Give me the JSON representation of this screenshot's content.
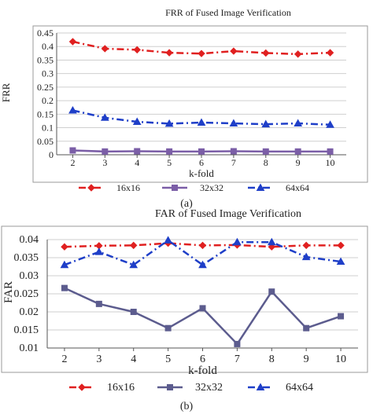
{
  "chart_data": [
    {
      "type": "line",
      "title": "FRR of Fused Image Verification",
      "xlabel": "k-fold",
      "ylabel": "FRR",
      "panel_label": "(a)",
      "x": [
        2,
        3,
        4,
        5,
        6,
        7,
        8,
        9,
        10
      ],
      "xlim": [
        1.5,
        10.5
      ],
      "ylim": [
        0,
        0.45
      ],
      "yticks": [
        "0",
        "0.05",
        "0.1",
        "0.15",
        "0.2",
        "0.25",
        "0.3",
        "0.35",
        "0.4",
        "0.45"
      ],
      "grid": true,
      "legend_position": "bottom",
      "series": [
        {
          "name": "16x16",
          "color": "#e02020",
          "marker": "diamond",
          "dash": "dash-dot",
          "values": [
            0.418,
            0.392,
            0.388,
            0.377,
            0.374,
            0.383,
            0.376,
            0.372,
            0.377
          ]
        },
        {
          "name": "32x32",
          "color": "#7b5ea7",
          "marker": "square",
          "dash": "solid",
          "values": [
            0.016,
            0.012,
            0.013,
            0.012,
            0.012,
            0.013,
            0.012,
            0.012,
            0.012
          ]
        },
        {
          "name": "64x64",
          "color": "#1f3fc8",
          "marker": "triangle",
          "dash": "dash-dot",
          "values": [
            0.164,
            0.137,
            0.122,
            0.115,
            0.119,
            0.116,
            0.113,
            0.116,
            0.111
          ]
        }
      ]
    },
    {
      "type": "line",
      "title": "FAR of Fused Image Verification",
      "xlabel": "k-fold",
      "ylabel": "FAR",
      "panel_label": "(b)",
      "x": [
        2,
        3,
        4,
        5,
        6,
        7,
        8,
        9,
        10
      ],
      "xlim": [
        1.5,
        10.5
      ],
      "ylim": [
        0.01,
        0.04
      ],
      "yticks": [
        "0.01",
        "0.015",
        "0.02",
        "0.025",
        "0.03",
        "0.035",
        "0.04"
      ],
      "grid": true,
      "legend_position": "bottom",
      "series": [
        {
          "name": "16x16",
          "color": "#e02020",
          "marker": "diamond",
          "dash": "dash-dot",
          "values": [
            0.038,
            0.0383,
            0.0384,
            0.039,
            0.0384,
            0.0385,
            0.038,
            0.0384,
            0.0384
          ]
        },
        {
          "name": "32x32",
          "color": "#5c5c8e",
          "marker": "square",
          "dash": "solid",
          "values": [
            0.0266,
            0.0222,
            0.02,
            0.0155,
            0.021,
            0.0111,
            0.0256,
            0.0155,
            0.0188
          ]
        },
        {
          "name": "64x64",
          "color": "#1f3fc8",
          "marker": "triangle",
          "dash": "dash-dot",
          "values": [
            0.033,
            0.0366,
            0.033,
            0.0398,
            0.033,
            0.0393,
            0.0393,
            0.0352,
            0.0339
          ]
        }
      ]
    }
  ]
}
